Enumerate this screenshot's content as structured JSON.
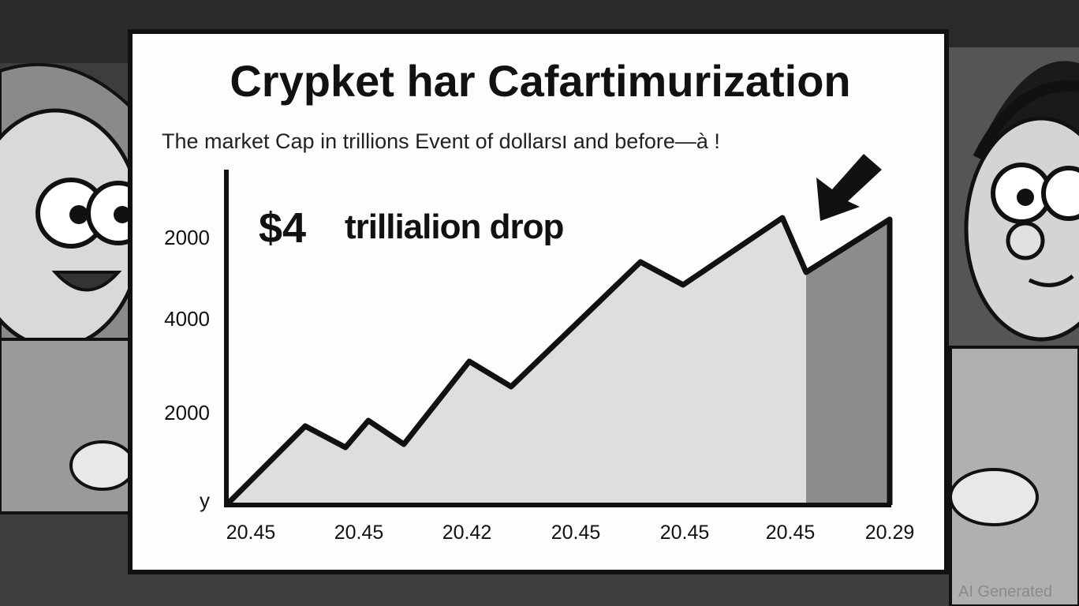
{
  "header": {
    "title": "Crypket  har Cafartimurization",
    "subtitle": "The market Cap in trillions Event of dollarsו and before—à !"
  },
  "annotation": {
    "amount": "$4",
    "text": "trillialion drop"
  },
  "y_axis_labels": [
    "2000",
    "4000",
    "2000",
    "y"
  ],
  "x_axis_labels": [
    "20.45",
    "20.45",
    "20.42",
    "20.45",
    "20.45",
    "20.45",
    "20.29"
  ],
  "watermark": "AI Generated"
}
